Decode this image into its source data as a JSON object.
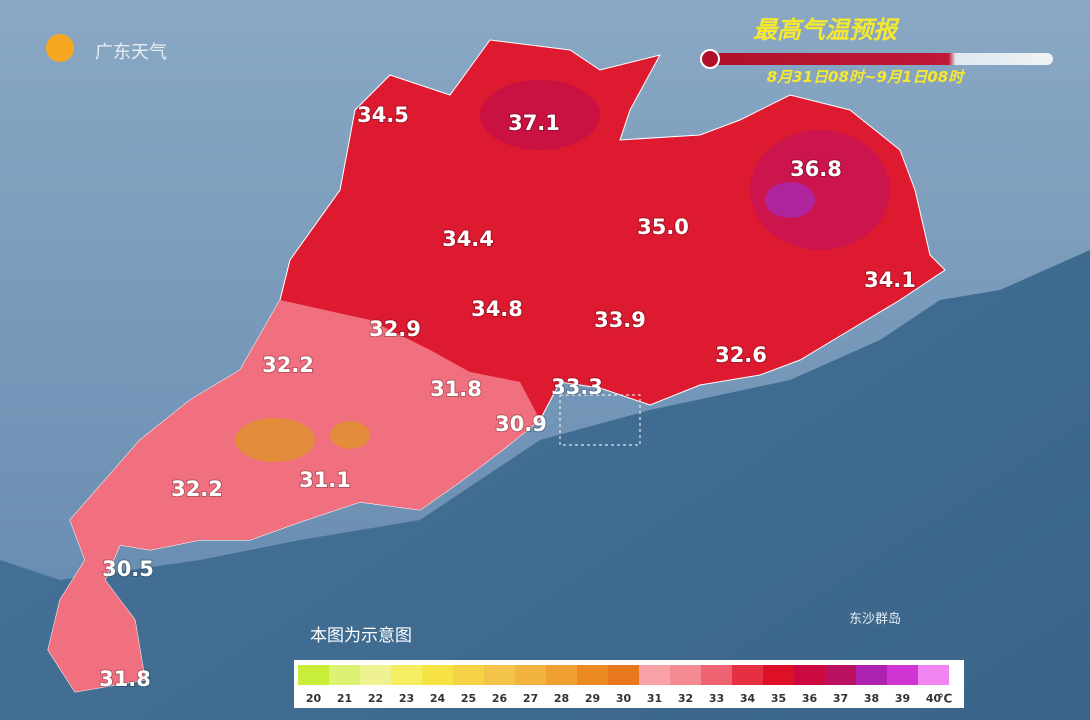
{
  "header": {
    "logo": "广东天气",
    "title": "最高气温预报",
    "period": "8月31日08时~9月1日08时"
  },
  "map": {
    "labels": [
      "34.5",
      "37.1",
      "36.8",
      "34.4",
      "35.0",
      "34.1",
      "34.8",
      "33.9",
      "32.9",
      "32.2",
      "31.8",
      "33.3",
      "32.6",
      "30.9",
      "32.2",
      "31.1",
      "30.5",
      "31.8"
    ],
    "island": "东沙群岛",
    "note": "本图为示意图"
  },
  "legend": {
    "unit": "℃",
    "items": [
      {
        "label": "20",
        "color": "#c8ee3a"
      },
      {
        "label": "21",
        "color": "#dcf272"
      },
      {
        "label": "22",
        "color": "#eef290"
      },
      {
        "label": "23",
        "color": "#f6ee62"
      },
      {
        "label": "24",
        "color": "#f6e244"
      },
      {
        "label": "25",
        "color": "#f6d344"
      },
      {
        "label": "26",
        "color": "#f4c44a"
      },
      {
        "label": "27",
        "color": "#f2b43e"
      },
      {
        "label": "28",
        "color": "#f0a030"
      },
      {
        "label": "29",
        "color": "#ec8a22"
      },
      {
        "label": "30",
        "color": "#e8781c"
      },
      {
        "label": "31",
        "color": "#f8a2a8"
      },
      {
        "label": "32",
        "color": "#f48a92"
      },
      {
        "label": "33",
        "color": "#ee6272"
      },
      {
        "label": "34",
        "color": "#e63042"
      },
      {
        "label": "35",
        "color": "#de1028"
      },
      {
        "label": "36",
        "color": "#cc0840"
      },
      {
        "label": "37",
        "color": "#bc1060"
      },
      {
        "label": "38",
        "color": "#ae22b2"
      },
      {
        "label": "39",
        "color": "#d034d2"
      },
      {
        "label": "40",
        "color": "#f084f0"
      }
    ]
  }
}
